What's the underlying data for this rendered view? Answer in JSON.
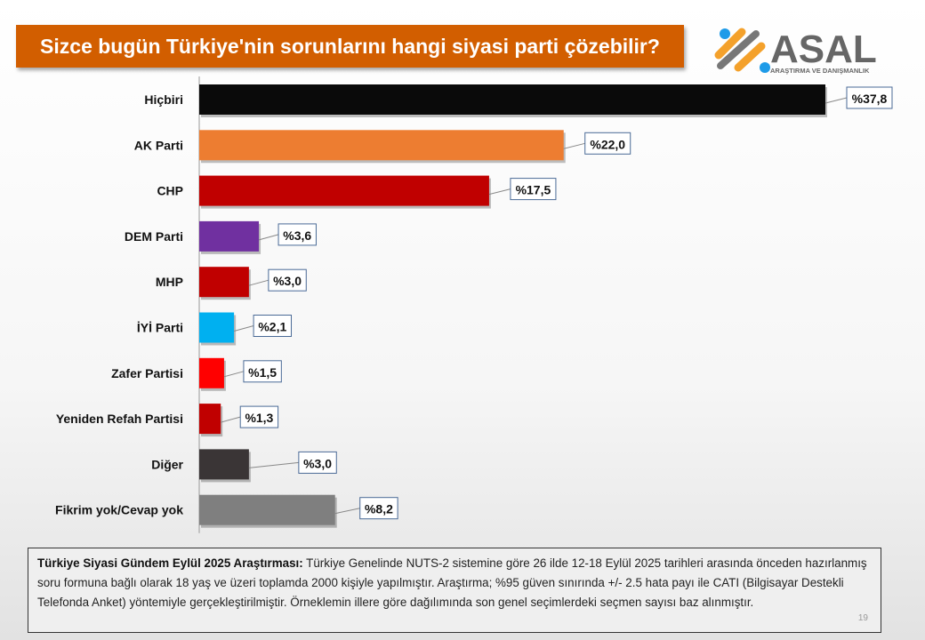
{
  "title": "Sizce bugün Türkiye'nin sorunlarını hangi siyasi parti çözebilir?",
  "logo": {
    "name": "ASAL",
    "tagline": "ARAŞTIRMA VE DANIŞMANLIK"
  },
  "chart_data": {
    "type": "bar",
    "orientation": "horizontal",
    "categories": [
      "Hiçbiri",
      "AK Parti",
      "CHP",
      "DEM Parti",
      "MHP",
      "İYİ Parti",
      "Zafer Partisi",
      "Yeniden Refah Partisi",
      "Diğer",
      "Fikrim yok/Cevap yok"
    ],
    "values": [
      37.8,
      22.0,
      17.5,
      3.6,
      3.0,
      2.1,
      1.5,
      1.3,
      3.0,
      8.2
    ],
    "labels": [
      "%37,8",
      "%22,0",
      "%17,5",
      "%3,6",
      "%3,0",
      "%2,1",
      "%1,5",
      "%1,3",
      "%3,0",
      "%8,2"
    ],
    "colors": [
      "#0a0a0a",
      "#ed7d31",
      "#c00000",
      "#7030a0",
      "#c00000",
      "#00b0f0",
      "#ff0000",
      "#c00000",
      "#3a3536",
      "#7f7f7f"
    ],
    "xlim": [
      0,
      37.8
    ],
    "grid": false,
    "legend": "none"
  },
  "note": {
    "bold": "Türkiye Siyasi Gündem Eylül  2025 Araştırması:",
    "text": " Türkiye Genelinde  NUTS-2 sistemine göre 26 ilde 12-18 Eylül 2025 tarihleri arasında önceden  hazırlanmış soru formuna bağlı olarak 18 yaş ve üzeri toplamda 2000 kişiyle yapılmıştır. Araştırma; %95 güven sınırında +/- 2.5 hata payı ile CATI (Bilgisayar Destekli Telefonda  Anket) yöntemiyle gerçekleştirilmiştir. Örneklemin illere göre dağılımında son genel  seçimlerdeki seçmen sayısı baz alınmıştır.",
    "page": "19"
  }
}
